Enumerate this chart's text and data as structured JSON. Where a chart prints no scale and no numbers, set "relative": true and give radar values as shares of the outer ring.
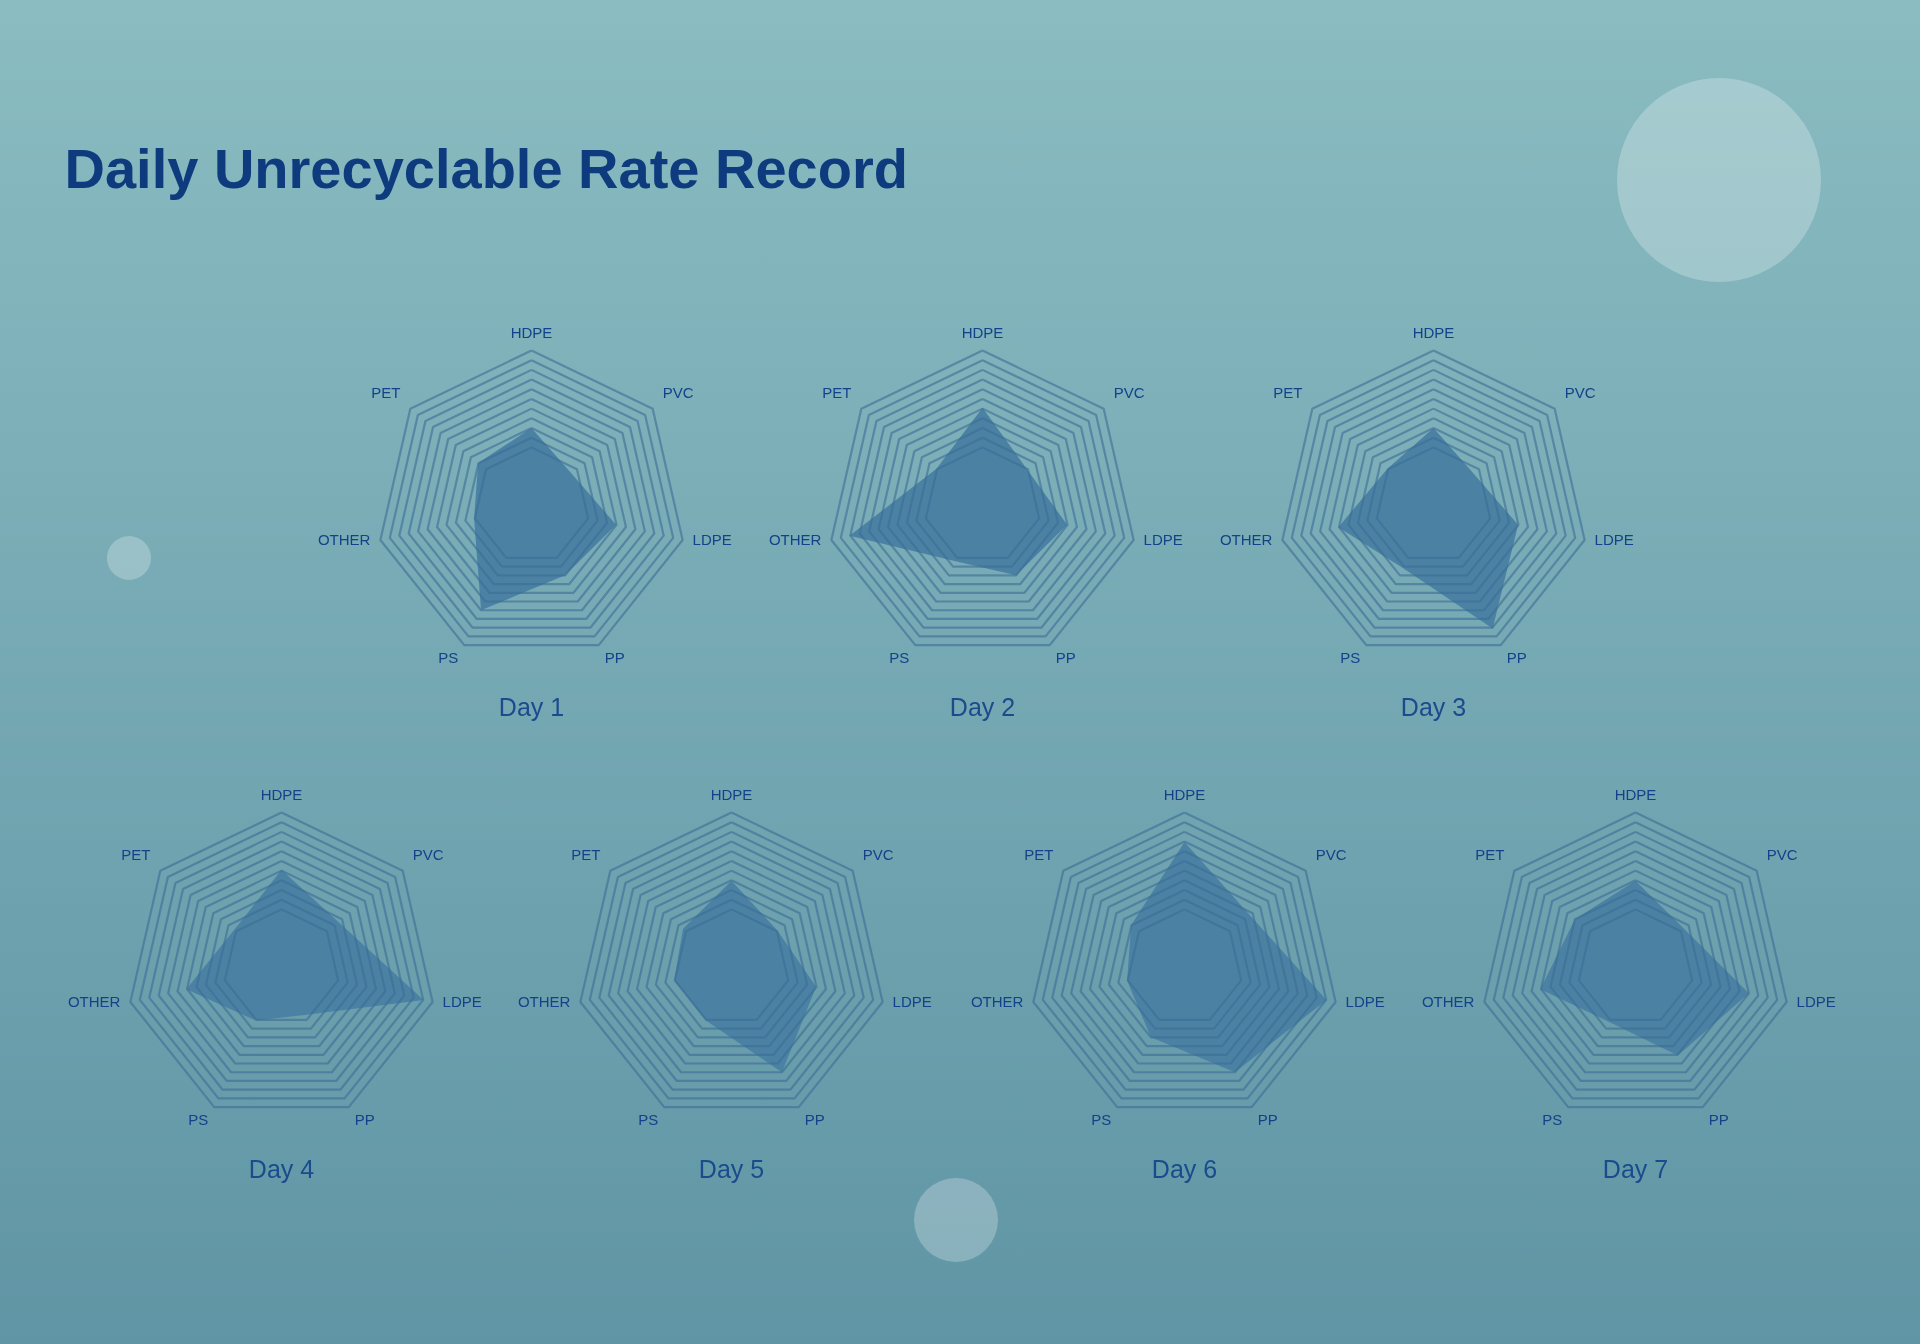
{
  "chart_data": [
    {
      "type": "radar",
      "title": "Daily Unrecyclable Rate Record",
      "xlabel": "Day 1",
      "relative": true,
      "grid": true,
      "categories": [
        "HDPE",
        "PVC",
        "LDPE",
        "PP",
        "PS",
        "OTHER",
        "PET"
      ],
      "series": [
        {
          "color": "#4b82a4",
          "values": [
            0.5,
            0.33,
            0.56,
            0.5,
            0.75,
            0.38,
            0.44
          ]
        }
      ]
    },
    {
      "type": "radar",
      "xlabel": "Day 2",
      "relative": true,
      "grid": true,
      "categories": [
        "HDPE",
        "PVC",
        "LDPE",
        "PP",
        "PS",
        "OTHER",
        "PET"
      ],
      "series": [
        {
          "color": "#4b82a4",
          "values": [
            0.63,
            0.37,
            0.56,
            0.5,
            0.4,
            0.88,
            0.38
          ]
        }
      ]
    },
    {
      "type": "radar",
      "xlabel": "Day 3",
      "relative": true,
      "grid": true,
      "categories": [
        "HDPE",
        "PVC",
        "LDPE",
        "PP",
        "PS",
        "OTHER",
        "PET"
      ],
      "series": [
        {
          "color": "#4b82a4",
          "values": [
            0.5,
            0.33,
            0.56,
            0.88,
            0.45,
            0.63,
            0.38
          ]
        }
      ]
    },
    {
      "type": "radar",
      "xlabel": "Day 4",
      "relative": true,
      "grid": true,
      "categories": [
        "HDPE",
        "PVC",
        "LDPE",
        "PP",
        "PS",
        "OTHER",
        "PET"
      ],
      "series": [
        {
          "color": "#4b82a4",
          "values": [
            0.63,
            0.47,
            0.94,
            0.34,
            0.38,
            0.63,
            0.39
          ]
        }
      ]
    },
    {
      "type": "radar",
      "xlabel": "Day 5",
      "relative": true,
      "grid": true,
      "categories": [
        "HDPE",
        "PVC",
        "LDPE",
        "PP",
        "PS",
        "OTHER",
        "PET"
      ],
      "series": [
        {
          "color": "#4b82a4",
          "values": [
            0.56,
            0.38,
            0.56,
            0.75,
            0.38,
            0.38,
            0.4
          ]
        }
      ]
    },
    {
      "type": "radar",
      "xlabel": "Day 6",
      "relative": true,
      "grid": true,
      "categories": [
        "HDPE",
        "PVC",
        "LDPE",
        "PP",
        "PS",
        "OTHER",
        "PET"
      ],
      "series": [
        {
          "color": "#4b82a4",
          "values": [
            0.81,
            0.54,
            0.94,
            0.75,
            0.5,
            0.38,
            0.44
          ]
        }
      ]
    },
    {
      "type": "radar",
      "xlabel": "Day 7",
      "relative": true,
      "grid": true,
      "categories": [
        "HDPE",
        "PVC",
        "LDPE",
        "PP",
        "PS",
        "OTHER",
        "PET"
      ],
      "series": [
        {
          "color": "#4b82a4",
          "values": [
            0.56,
            0.4,
            0.75,
            0.63,
            0.39,
            0.63,
            0.5
          ]
        }
      ]
    }
  ]
}
